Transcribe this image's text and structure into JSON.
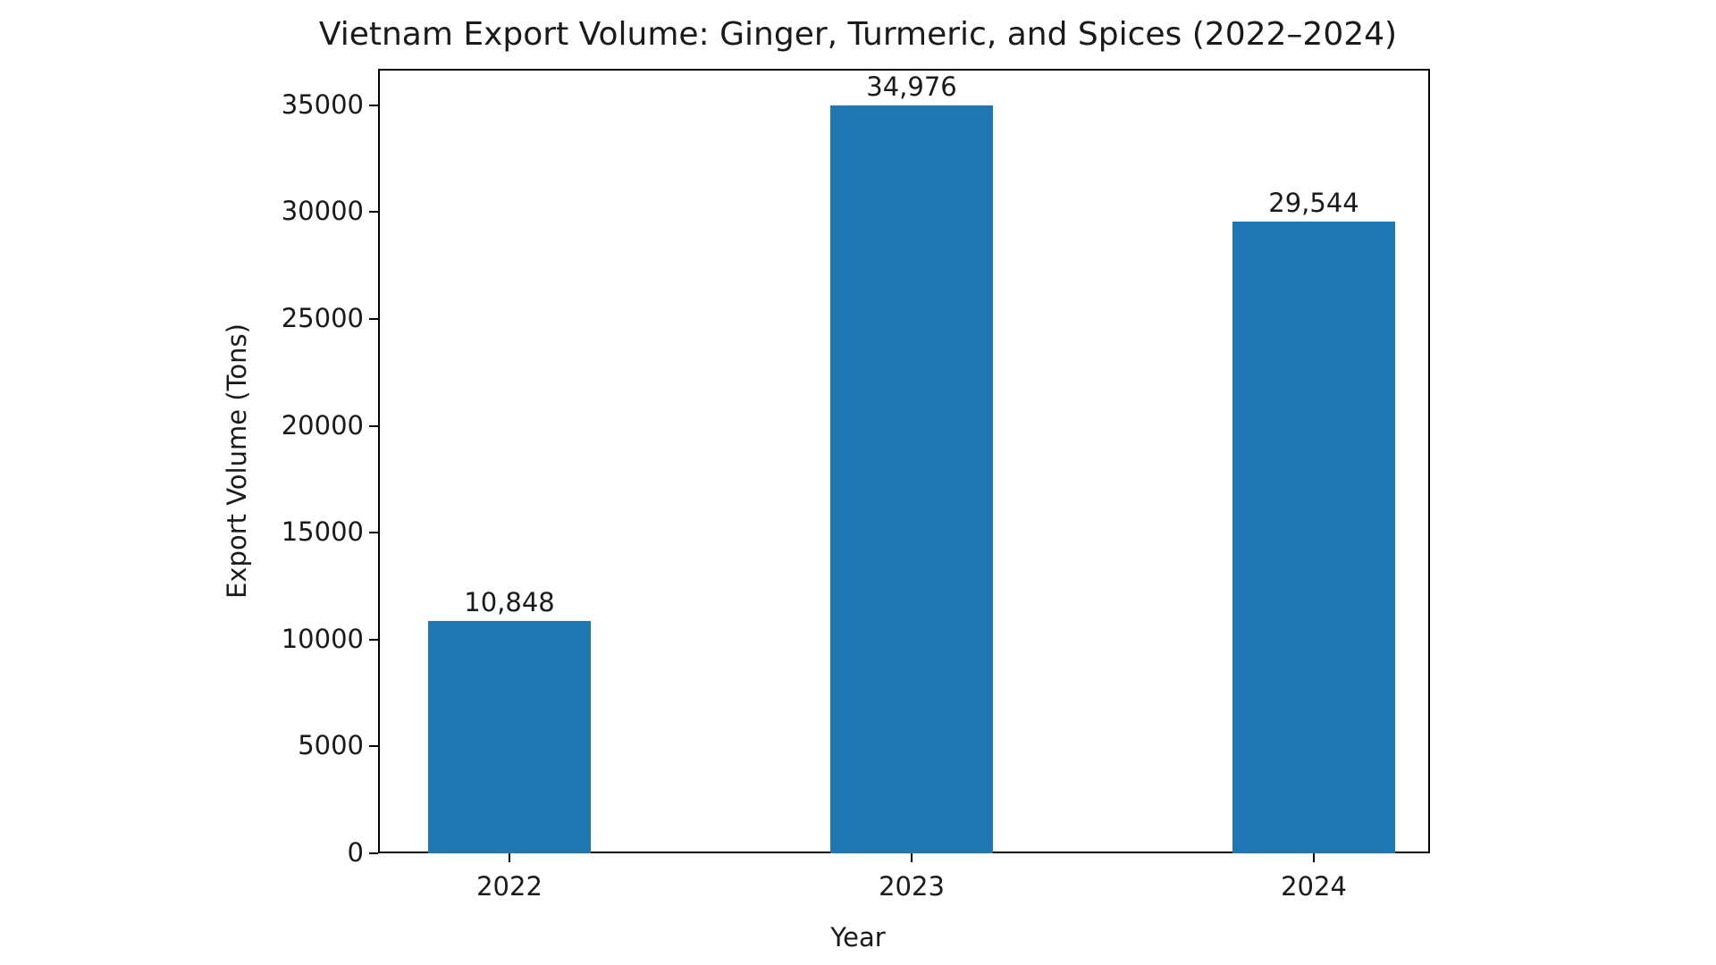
{
  "chart_data": {
    "type": "bar",
    "title": "Vietnam Export Volume: Ginger, Turmeric, and Spices (2022–2024)",
    "xlabel": "Year",
    "ylabel": "Export Volume (Tons)",
    "categories": [
      "2022",
      "2023",
      "2024"
    ],
    "values": [
      10848,
      34976,
      29544
    ],
    "value_labels": [
      "10,848",
      "34,976",
      "29,544"
    ],
    "yticks": [
      0,
      5000,
      10000,
      15000,
      20000,
      25000,
      30000,
      35000
    ],
    "ytick_labels": [
      "0",
      "5000",
      "10000",
      "15000",
      "20000",
      "25000",
      "30000",
      "35000"
    ],
    "ylim": [
      0,
      36700
    ],
    "grid": false,
    "legend": null,
    "bar_color": "#1f77b4"
  }
}
